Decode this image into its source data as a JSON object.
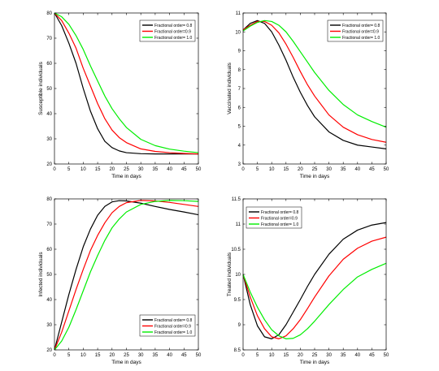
{
  "chart_data": [
    {
      "type": "line",
      "xlabel": "Time in days",
      "ylabel": "Susceptible individuals",
      "xlim": [
        0,
        50
      ],
      "ylim": [
        20,
        80
      ],
      "xticks": [
        0,
        5,
        10,
        15,
        20,
        25,
        30,
        35,
        40,
        45,
        50
      ],
      "yticks": [
        20,
        30,
        40,
        50,
        60,
        70,
        80
      ],
      "grid": false,
      "legend": "top-right",
      "series": [
        {
          "name": "Fractional order= 0.8",
          "color": "#000000",
          "x": [
            0,
            2.5,
            5,
            7.5,
            10,
            12.5,
            15,
            17.5,
            20,
            22.5,
            25,
            30,
            35,
            40,
            45,
            50
          ],
          "y": [
            80,
            75,
            68,
            60,
            50,
            41,
            34,
            29,
            26.5,
            25.2,
            24.5,
            24.1,
            24,
            24,
            24,
            24
          ]
        },
        {
          "name": "Fractional order=0.9",
          "color": "#ff0000",
          "x": [
            0,
            2.5,
            5,
            7.5,
            10,
            12.5,
            15,
            17.5,
            20,
            22.5,
            25,
            30,
            35,
            40,
            45,
            50
          ],
          "y": [
            80,
            77,
            72,
            66,
            58,
            51,
            44,
            38,
            33.5,
            30.5,
            28.5,
            26,
            25,
            24.5,
            24.2,
            24
          ]
        },
        {
          "name": "Fractional order= 1.0",
          "color": "#00ee00",
          "x": [
            0,
            2.5,
            5,
            7.5,
            10,
            12.5,
            15,
            17.5,
            20,
            22.5,
            25,
            30,
            35,
            40,
            45,
            50
          ],
          "y": [
            80,
            78.5,
            75.5,
            71,
            65.5,
            59,
            53,
            47,
            42,
            38,
            34.5,
            29.8,
            27.3,
            25.9,
            25.1,
            24.5
          ]
        }
      ]
    },
    {
      "type": "line",
      "xlabel": "Time in days",
      "ylabel": "Vaccinated individuals",
      "xlim": [
        0,
        50
      ],
      "ylim": [
        3,
        11
      ],
      "xticks": [
        0,
        5,
        10,
        15,
        20,
        25,
        30,
        35,
        40,
        45,
        50
      ],
      "yticks": [
        3,
        4,
        5,
        6,
        7,
        8,
        9,
        10,
        11
      ],
      "grid": false,
      "legend": "top-right",
      "series": [
        {
          "name": "Fractional order= 0.8",
          "color": "#000000",
          "x": [
            0,
            2.5,
            5,
            7.5,
            10,
            12.5,
            15,
            17.5,
            20,
            22.5,
            25,
            30,
            35,
            40,
            45,
            50
          ],
          "y": [
            10.1,
            10.45,
            10.6,
            10.45,
            10.0,
            9.3,
            8.5,
            7.6,
            6.8,
            6.1,
            5.5,
            4.7,
            4.25,
            4.0,
            3.9,
            3.8
          ]
        },
        {
          "name": "Fractional order=0.9",
          "color": "#ff0000",
          "x": [
            0,
            2.5,
            5,
            7.5,
            10,
            12.5,
            15,
            17.5,
            20,
            22.5,
            25,
            30,
            35,
            40,
            45,
            50
          ],
          "y": [
            10.1,
            10.35,
            10.55,
            10.55,
            10.35,
            9.95,
            9.35,
            8.65,
            7.9,
            7.2,
            6.6,
            5.6,
            4.95,
            4.55,
            4.3,
            4.15
          ]
        },
        {
          "name": "Fractional order= 1.0",
          "color": "#00ee00",
          "x": [
            0,
            2.5,
            5,
            7.5,
            10,
            12.5,
            15,
            17.5,
            20,
            22.5,
            25,
            30,
            35,
            40,
            45,
            50
          ],
          "y": [
            10.05,
            10.3,
            10.5,
            10.6,
            10.55,
            10.35,
            10.0,
            9.5,
            8.95,
            8.4,
            7.85,
            6.9,
            6.15,
            5.6,
            5.25,
            4.95
          ]
        }
      ]
    },
    {
      "type": "line",
      "xlabel": "Time in days",
      "ylabel": "Infected individuals",
      "xlim": [
        0,
        50
      ],
      "ylim": [
        20,
        80
      ],
      "xticks": [
        0,
        5,
        10,
        15,
        20,
        25,
        30,
        35,
        40,
        45,
        50
      ],
      "yticks": [
        20,
        30,
        40,
        50,
        60,
        70,
        80
      ],
      "grid": false,
      "legend": "bottom-right",
      "series": [
        {
          "name": "Fractional order= 0.8",
          "color": "#000000",
          "x": [
            0,
            2.5,
            5,
            7.5,
            10,
            12.5,
            15,
            17.5,
            20,
            22.5,
            25,
            30,
            35,
            40,
            45,
            50
          ],
          "y": [
            20,
            31,
            42,
            52,
            61,
            68,
            73.5,
            77,
            78.8,
            79.3,
            79.2,
            78.3,
            77,
            75.8,
            74.8,
            73.7
          ]
        },
        {
          "name": "Fractional order=0.9",
          "color": "#ff0000",
          "x": [
            0,
            2.5,
            5,
            7.5,
            10,
            12.5,
            15,
            17.5,
            20,
            22.5,
            25,
            30,
            35,
            40,
            45,
            50
          ],
          "y": [
            20,
            27,
            35.5,
            44,
            52,
            59.5,
            65.5,
            70.5,
            74.5,
            77,
            78.5,
            79.4,
            79.2,
            78.6,
            77.8,
            77
          ]
        },
        {
          "name": "Fractional order= 1.0",
          "color": "#00ee00",
          "x": [
            0,
            2.5,
            5,
            7.5,
            10,
            12.5,
            15,
            17.5,
            20,
            22.5,
            25,
            30,
            35,
            40,
            45,
            50
          ],
          "y": [
            20,
            23.5,
            29,
            36,
            43.5,
            51,
            57.5,
            63.5,
            68.5,
            72,
            74.8,
            77.8,
            79,
            79.4,
            79.3,
            79
          ]
        }
      ]
    },
    {
      "type": "line",
      "xlabel": "Time in days",
      "ylabel": "Treated individuals",
      "xlim": [
        0,
        50
      ],
      "ylim": [
        8.5,
        11.5
      ],
      "xticks": [
        0,
        5,
        10,
        15,
        20,
        25,
        30,
        35,
        40,
        45,
        50
      ],
      "yticks": [
        8.5,
        9,
        9.5,
        10,
        10.5,
        11,
        11.5
      ],
      "grid": false,
      "legend": "top-left",
      "series": [
        {
          "name": "Fractional order= 0.8",
          "color": "#000000",
          "x": [
            0,
            2.5,
            5,
            7.5,
            10,
            12.5,
            15,
            17.5,
            20,
            22.5,
            25,
            30,
            35,
            40,
            45,
            50
          ],
          "y": [
            10,
            9.4,
            8.98,
            8.76,
            8.72,
            8.8,
            9.0,
            9.25,
            9.5,
            9.76,
            10.0,
            10.4,
            10.7,
            10.88,
            10.98,
            11.03
          ]
        },
        {
          "name": "Fractional order=0.9",
          "color": "#ff0000",
          "x": [
            0,
            2.5,
            5,
            7.5,
            10,
            12.5,
            15,
            17.5,
            20,
            22.5,
            25,
            30,
            35,
            40,
            45,
            50
          ],
          "y": [
            10,
            9.55,
            9.18,
            8.92,
            8.76,
            8.72,
            8.78,
            8.92,
            9.1,
            9.32,
            9.55,
            9.97,
            10.3,
            10.52,
            10.66,
            10.74
          ]
        },
        {
          "name": "Fractional order= 1.0",
          "color": "#00ee00",
          "x": [
            0,
            2.5,
            5,
            7.5,
            10,
            12.5,
            15,
            17.5,
            20,
            22.5,
            25,
            30,
            35,
            40,
            45,
            50
          ],
          "y": [
            10,
            9.65,
            9.35,
            9.1,
            8.9,
            8.78,
            8.72,
            8.73,
            8.8,
            8.92,
            9.07,
            9.4,
            9.7,
            9.95,
            10.1,
            10.22
          ]
        }
      ]
    }
  ]
}
